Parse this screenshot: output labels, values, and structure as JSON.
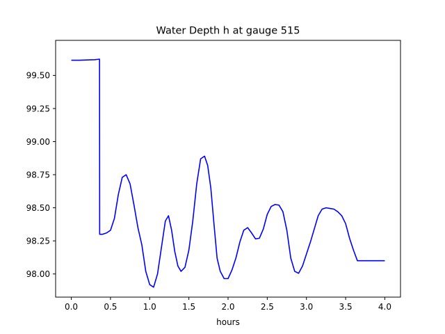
{
  "chart_data": {
    "type": "line",
    "title": "Water Depth h at gauge 515",
    "xlabel": "hours",
    "ylabel": "",
    "xlim": [
      -0.2,
      4.2
    ],
    "ylim": [
      97.825,
      99.765
    ],
    "xticks": [
      0.0,
      0.5,
      1.0,
      1.5,
      2.0,
      2.5,
      3.0,
      3.5,
      4.0
    ],
    "xtick_labels": [
      "0.0",
      "0.5",
      "1.0",
      "1.5",
      "2.0",
      "2.5",
      "3.0",
      "3.5",
      "4.0"
    ],
    "yticks": [
      98.0,
      98.25,
      98.5,
      98.75,
      99.0,
      99.25,
      99.5
    ],
    "ytick_labels": [
      "98.00",
      "98.25",
      "98.50",
      "98.75",
      "99.00",
      "99.25",
      "99.50"
    ],
    "grid": false,
    "legend": "none",
    "series": [
      {
        "color": "#0000ff",
        "x": [
          0.0,
          0.1,
          0.2,
          0.3,
          0.36,
          0.362,
          0.4,
          0.45,
          0.5,
          0.55,
          0.6,
          0.65,
          0.7,
          0.75,
          0.8,
          0.85,
          0.9,
          0.95,
          1.0,
          1.05,
          1.1,
          1.15,
          1.2,
          1.24,
          1.28,
          1.32,
          1.36,
          1.4,
          1.45,
          1.5,
          1.55,
          1.6,
          1.65,
          1.7,
          1.74,
          1.78,
          1.82,
          1.86,
          1.9,
          1.95,
          2.0,
          2.05,
          2.1,
          2.15,
          2.2,
          2.25,
          2.3,
          2.35,
          2.4,
          2.45,
          2.5,
          2.55,
          2.6,
          2.65,
          2.7,
          2.75,
          2.8,
          2.85,
          2.9,
          2.95,
          3.0,
          3.05,
          3.1,
          3.15,
          3.2,
          3.25,
          3.3,
          3.35,
          3.4,
          3.45,
          3.5,
          3.55,
          3.6,
          3.65,
          3.7,
          3.75,
          3.8,
          3.85,
          3.9,
          3.95,
          4.0
        ],
        "y": [
          99.615,
          99.615,
          99.617,
          99.619,
          99.623,
          98.3,
          98.3,
          98.31,
          98.33,
          98.42,
          98.6,
          98.73,
          98.75,
          98.68,
          98.52,
          98.35,
          98.22,
          98.02,
          97.92,
          97.9,
          98.0,
          98.2,
          98.4,
          98.44,
          98.33,
          98.17,
          98.06,
          98.02,
          98.05,
          98.18,
          98.4,
          98.68,
          98.87,
          98.89,
          98.82,
          98.65,
          98.38,
          98.12,
          98.02,
          97.965,
          97.965,
          98.03,
          98.12,
          98.24,
          98.33,
          98.35,
          98.31,
          98.265,
          98.27,
          98.34,
          98.45,
          98.51,
          98.525,
          98.52,
          98.47,
          98.33,
          98.12,
          98.02,
          98.005,
          98.06,
          98.15,
          98.24,
          98.34,
          98.44,
          98.49,
          98.5,
          98.495,
          98.49,
          98.47,
          98.44,
          98.38,
          98.27,
          98.18,
          98.1,
          98.1,
          98.1,
          98.1,
          98.1,
          98.1,
          98.1,
          98.1
        ]
      }
    ]
  }
}
